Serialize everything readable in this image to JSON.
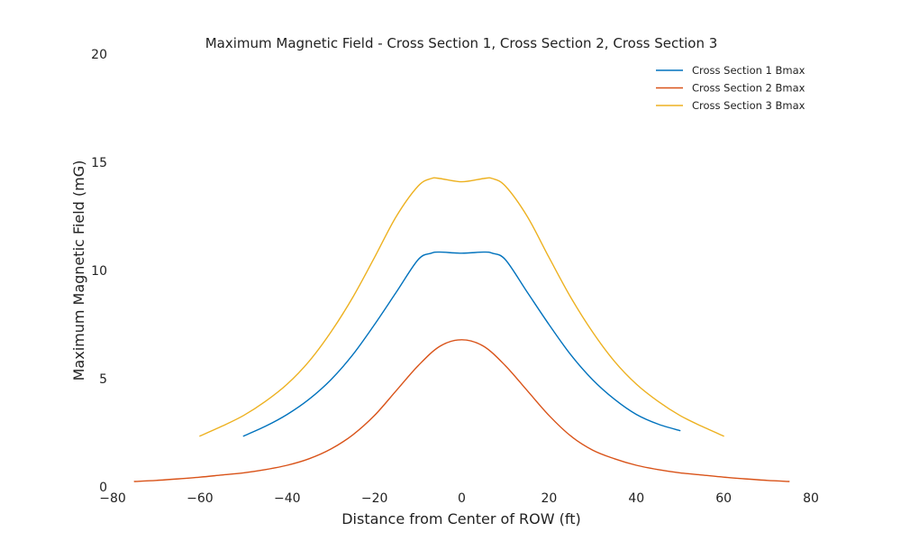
{
  "chart_data": {
    "type": "line",
    "title": "Maximum Magnetic Field - Cross Section 1, Cross Section 2, Cross Section 3",
    "xlabel": "Distance from Center of ROW (ft)",
    "ylabel": "Maximum Magnetic Field (mG)",
    "xlim": [
      -80,
      80
    ],
    "ylim": [
      0,
      20
    ],
    "xticks": [
      -80,
      -60,
      -40,
      -20,
      0,
      20,
      40,
      60,
      80
    ],
    "xtick_labels": [
      "−80",
      "−60",
      "−40",
      "−20",
      "0",
      "20",
      "40",
      "60",
      "80"
    ],
    "yticks": [
      0,
      5,
      10,
      15,
      20
    ],
    "ytick_labels": [
      "0",
      "5",
      "10",
      "15",
      "20"
    ],
    "grid": false,
    "legend_position": "top-right",
    "series": [
      {
        "name": "Cross Section 1 Bmax",
        "color": "#0072BD",
        "x": [
          -50,
          -45,
          -40,
          -35,
          -30,
          -25,
          -20,
          -15,
          -10,
          -7,
          -5,
          0,
          5,
          7,
          10,
          15,
          20,
          25,
          30,
          35,
          40,
          45,
          50
        ],
        "y": [
          2.35,
          2.8,
          3.35,
          4.05,
          4.95,
          6.1,
          7.5,
          9.0,
          10.5,
          10.8,
          10.85,
          10.8,
          10.85,
          10.8,
          10.5,
          9.0,
          7.5,
          6.1,
          4.95,
          4.05,
          3.35,
          2.9,
          2.6
        ]
      },
      {
        "name": "Cross Section 2 Bmax",
        "color": "#D95319",
        "x": [
          -75,
          -70,
          -65,
          -60,
          -55,
          -50,
          -45,
          -40,
          -35,
          -30,
          -25,
          -20,
          -15,
          -10,
          -5,
          0,
          5,
          10,
          15,
          20,
          25,
          30,
          35,
          40,
          45,
          50,
          55,
          60,
          65,
          70,
          75
        ],
        "y": [
          0.25,
          0.3,
          0.37,
          0.45,
          0.55,
          0.65,
          0.8,
          1.0,
          1.3,
          1.75,
          2.4,
          3.3,
          4.45,
          5.6,
          6.5,
          6.8,
          6.5,
          5.6,
          4.45,
          3.3,
          2.35,
          1.7,
          1.3,
          1.0,
          0.8,
          0.65,
          0.55,
          0.45,
          0.37,
          0.3,
          0.25
        ]
      },
      {
        "name": "Cross Section 3 Bmax",
        "color": "#EDB120",
        "x": [
          -60,
          -55,
          -50,
          -45,
          -40,
          -35,
          -30,
          -25,
          -20,
          -15,
          -10,
          -7,
          -5,
          0,
          5,
          7,
          10,
          15,
          20,
          25,
          30,
          35,
          40,
          45,
          50,
          55,
          60
        ],
        "y": [
          2.35,
          2.8,
          3.3,
          3.95,
          4.75,
          5.8,
          7.15,
          8.75,
          10.6,
          12.5,
          13.9,
          14.25,
          14.25,
          14.1,
          14.25,
          14.25,
          13.9,
          12.5,
          10.6,
          8.75,
          7.15,
          5.8,
          4.75,
          3.95,
          3.3,
          2.8,
          2.35
        ]
      }
    ]
  }
}
